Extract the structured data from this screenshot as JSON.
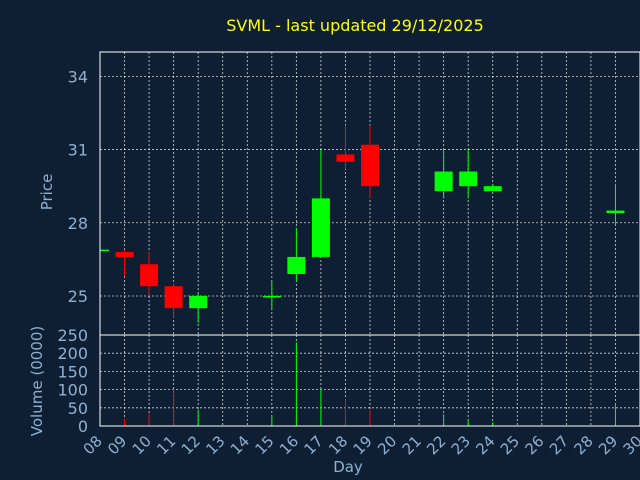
{
  "colors": {
    "background": "#0f1f33",
    "plot_bg": "#0f1f33",
    "frame": "#ffffff",
    "grid": "#ffffff",
    "title": "#ffff00",
    "axis_text": "#8fb0d0",
    "up": "#00ff00",
    "down": "#ff0000"
  },
  "chart_data": {
    "type": "candlestick",
    "title": "SVML - last updated 29/12/2025",
    "xlabel": "Day",
    "price_panel": {
      "ylabel": "Price",
      "ylim": [
        23.4,
        35
      ],
      "yticks": [
        25,
        28,
        31,
        34
      ],
      "grid": true
    },
    "volume_panel": {
      "ylabel": "Volume (0000)",
      "ylim": [
        0,
        250
      ],
      "yticks": [
        0,
        50,
        100,
        150,
        200,
        250
      ],
      "grid": true
    },
    "xticks": [
      "08",
      "09",
      "10",
      "11",
      "12",
      "13",
      "14",
      "15",
      "16",
      "17",
      "18",
      "19",
      "20",
      "21",
      "22",
      "23",
      "24",
      "25",
      "26",
      "27",
      "28",
      "29",
      "30"
    ],
    "candles": [
      {
        "day": 8,
        "open": 26.9,
        "high": 26.9,
        "low": 26.9,
        "close": 26.9,
        "volume": 0
      },
      {
        "day": 9,
        "open": 26.8,
        "high": 26.9,
        "low": 25.8,
        "close": 26.6,
        "volume": 20
      },
      {
        "day": 10,
        "open": 26.3,
        "high": 26.8,
        "low": 25.0,
        "close": 25.4,
        "volume": 35
      },
      {
        "day": 11,
        "open": 25.4,
        "high": 25.5,
        "low": 24.1,
        "close": 24.5,
        "volume": 100
      },
      {
        "day": 12,
        "open": 24.5,
        "high": 25.1,
        "low": 23.9,
        "close": 25.0,
        "volume": 45
      },
      {
        "day": 15,
        "open": 25.0,
        "high": 25.6,
        "low": 24.5,
        "close": 25.0,
        "volume": 28
      },
      {
        "day": 16,
        "open": 25.9,
        "high": 27.8,
        "low": 25.6,
        "close": 26.6,
        "volume": 230
      },
      {
        "day": 17,
        "open": 26.6,
        "high": 31.0,
        "low": 26.6,
        "close": 29.0,
        "volume": 100
      },
      {
        "day": 18,
        "open": 30.8,
        "high": 32.0,
        "low": 30.2,
        "close": 30.5,
        "volume": 75
      },
      {
        "day": 19,
        "open": 31.2,
        "high": 32.0,
        "low": 29.0,
        "close": 29.5,
        "volume": 45
      },
      {
        "day": 22,
        "open": 29.3,
        "high": 31.0,
        "low": 29.0,
        "close": 30.1,
        "volume": 32
      },
      {
        "day": 23,
        "open": 29.5,
        "high": 31.0,
        "low": 29.0,
        "close": 30.1,
        "volume": 15
      },
      {
        "day": 24,
        "open": 29.3,
        "high": 29.6,
        "low": 29.3,
        "close": 29.5,
        "volume": 10
      },
      {
        "day": 29,
        "open": 28.4,
        "high": 29.6,
        "low": 27.9,
        "close": 28.5,
        "volume": 60
      }
    ]
  }
}
